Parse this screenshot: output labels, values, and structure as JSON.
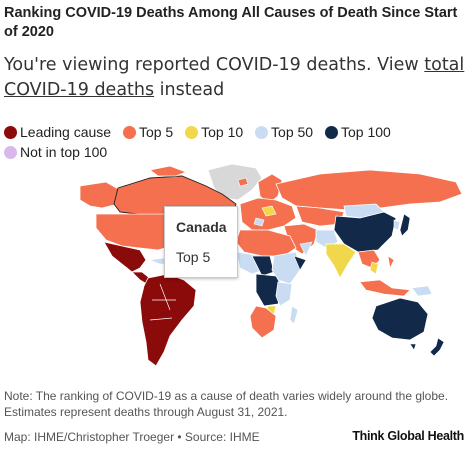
{
  "title": "Ranking COVID-19 Deaths Among All Causes of Death Since Start of 2020",
  "subtitle": {
    "prefix": "You're viewing reported COVID-19 deaths. View ",
    "link": "total COVID-19 deaths",
    "suffix": " instead"
  },
  "legend": [
    {
      "label": "Leading cause",
      "color": "#8b0a0a"
    },
    {
      "label": "Top 5",
      "color": "#f4704f"
    },
    {
      "label": "Top 10",
      "color": "#f0d84a"
    },
    {
      "label": "Top 50",
      "color": "#c9dcf2"
    },
    {
      "label": "Top 100",
      "color": "#12294a"
    },
    {
      "label": "Not in top 100",
      "color": "#d9b8ec"
    }
  ],
  "tooltip": {
    "country": "Canada",
    "value": "Top 5"
  },
  "colors": {
    "no_data": "#d8d8d8"
  },
  "note": "Note: The ranking of COVID-19 as a cause of death varies widely around the globe. Estimates represent deaths through August 31, 2021.",
  "credit": "Map: IHME/Christopher Troeger • Source: IHME",
  "brand": "Think Global Health"
}
